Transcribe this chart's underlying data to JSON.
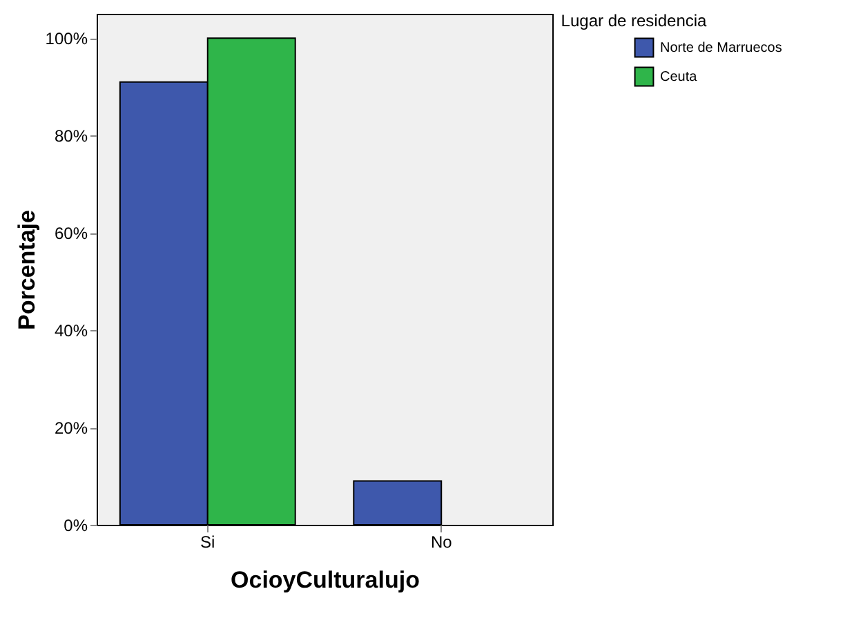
{
  "chart_data": {
    "type": "bar",
    "xlabel": "OcioyCulturalujo",
    "ylabel": "Porcentaje",
    "legend_title": "Lugar de residencia",
    "categories": [
      "Si",
      "No"
    ],
    "series": [
      {
        "name": "Norte de Marruecos",
        "color": "#3e58ac",
        "values": [
          91,
          9
        ]
      },
      {
        "name": "Ceuta",
        "color": "#2fb54a",
        "values": [
          100,
          0
        ]
      }
    ],
    "ylim": [
      0,
      105
    ],
    "yticks": [
      {
        "value": 0,
        "label": "0%"
      },
      {
        "value": 20,
        "label": "20%"
      },
      {
        "value": 40,
        "label": "40%"
      },
      {
        "value": 60,
        "label": "60%"
      },
      {
        "value": 80,
        "label": "80%"
      },
      {
        "value": 100,
        "label": "100%"
      }
    ],
    "grid": false,
    "legend": "right"
  }
}
